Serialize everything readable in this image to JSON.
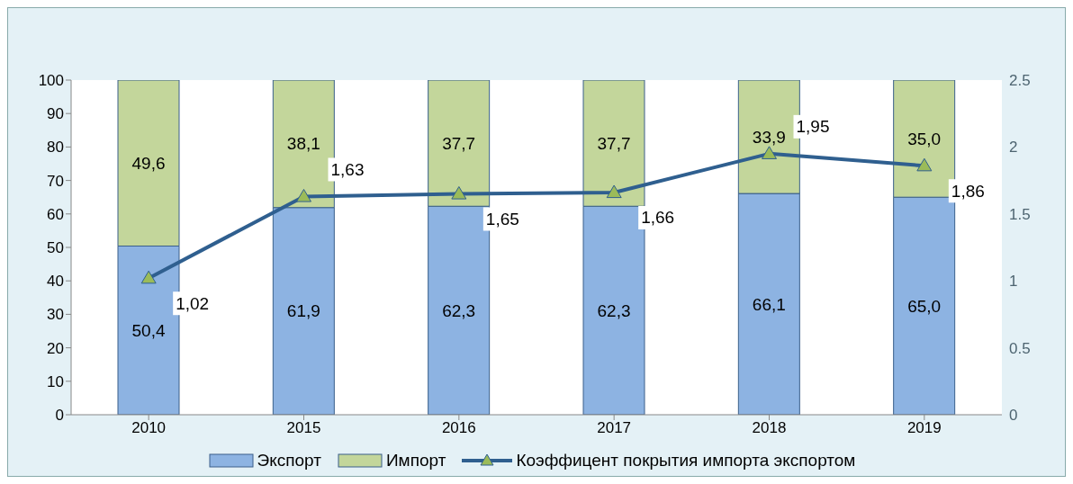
{
  "chart_data": {
    "type": "bar",
    "stacked": true,
    "categories": [
      "2010",
      "2015",
      "2016",
      "2017",
      "2018",
      "2019"
    ],
    "series": [
      {
        "name": "Экспорт",
        "color": "#8db3e2",
        "values": [
          50.4,
          61.9,
          62.3,
          62.3,
          66.1,
          65.0
        ],
        "value_labels": [
          "50,4",
          "61,9",
          "62,3",
          "62,3",
          "66,1",
          "65,0"
        ]
      },
      {
        "name": "Импорт",
        "color": "#c3d69b",
        "values": [
          49.6,
          38.1,
          37.7,
          37.7,
          33.9,
          35.0
        ],
        "value_labels": [
          "49,6",
          "38,1",
          "37,7",
          "37,7",
          "33,9",
          "35,0"
        ]
      },
      {
        "name": "Коэффицент покрытия импорта экспортом",
        "type": "line",
        "axis": "y2",
        "color": "#2f5f8f",
        "marker": "triangle",
        "values": [
          1.02,
          1.63,
          1.65,
          1.66,
          1.95,
          1.86
        ],
        "value_labels": [
          "1,02",
          "1,63",
          "1,65",
          "1,66",
          "1,95",
          "1,86"
        ]
      }
    ],
    "ylim": [
      0,
      100
    ],
    "yticks": [
      0,
      10,
      20,
      30,
      40,
      50,
      60,
      70,
      80,
      90,
      100
    ],
    "y2lim": [
      0,
      2.5
    ],
    "y2ticks": [
      0,
      0.5,
      1,
      1.5,
      2,
      2.5
    ],
    "grid": false,
    "legend": "bottom"
  }
}
